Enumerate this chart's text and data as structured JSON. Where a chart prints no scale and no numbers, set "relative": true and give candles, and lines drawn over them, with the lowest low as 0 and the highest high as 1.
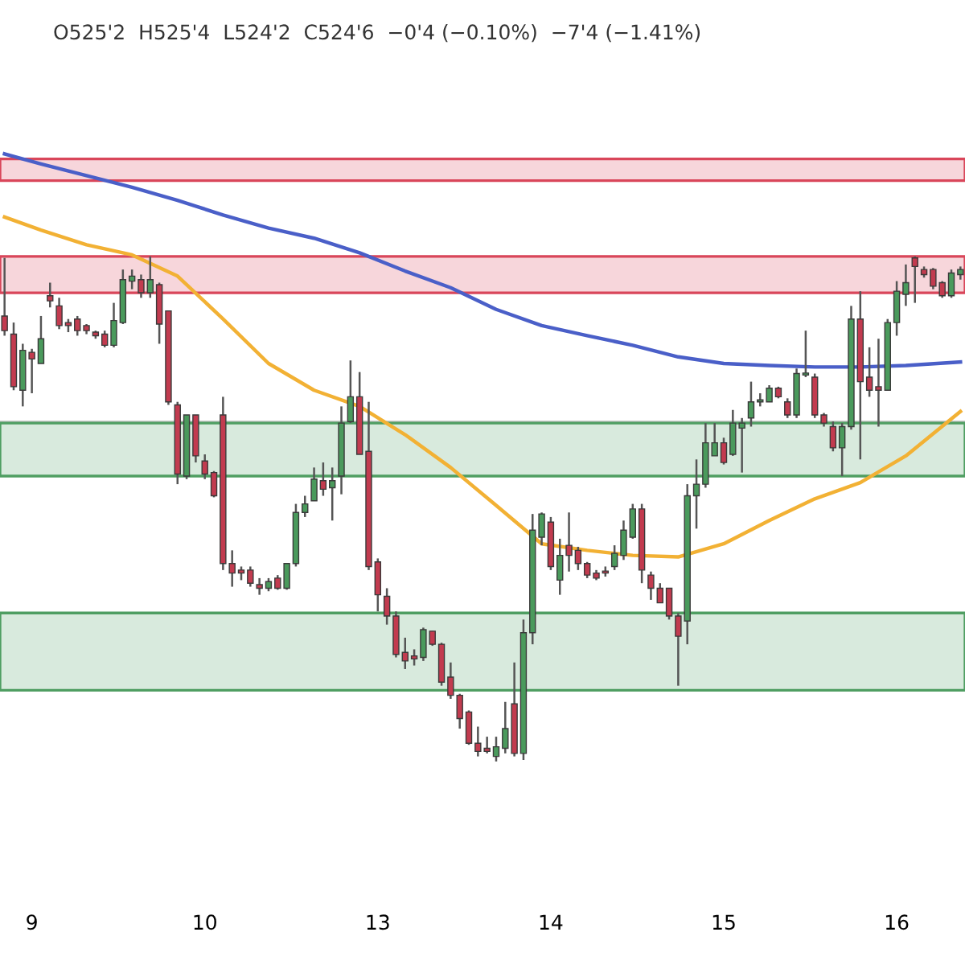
{
  "chart_data": {
    "type": "candlestick",
    "relative": true,
    "title": "O525'2  H525'4  L524'2  C524'6  −0'4 (−0.10%)  −7'4 (−1.41%)",
    "categories": [
      null,
      null,
      null,
      "9",
      null,
      null,
      null,
      null,
      null,
      null,
      null,
      null,
      null,
      null,
      null,
      null,
      null,
      null,
      null,
      null,
      null,
      null,
      "10",
      null,
      null,
      null,
      null,
      null,
      null,
      null,
      null,
      null,
      null,
      null,
      null,
      null,
      null,
      null,
      null,
      null,
      null,
      "13",
      null,
      null,
      null,
      null,
      null,
      null,
      null,
      null,
      null,
      null,
      null,
      null,
      null,
      null,
      null,
      null,
      null,
      null,
      "14",
      null,
      null,
      null,
      null,
      null,
      null,
      null,
      null,
      null,
      null,
      null,
      null,
      null,
      null,
      null,
      null,
      null,
      null,
      "15",
      null,
      null,
      null,
      null,
      null,
      null,
      null,
      null,
      null,
      null,
      null,
      null,
      null,
      null,
      null,
      null,
      null,
      null,
      "16",
      null,
      null,
      null,
      null,
      null,
      null,
      null
    ],
    "ohlc": [
      [
        0.882,
        0.997,
        0.843,
        0.853
      ],
      [
        0.846,
        0.869,
        0.735,
        0.742
      ],
      [
        0.735,
        0.827,
        0.703,
        0.814
      ],
      [
        0.81,
        0.817,
        0.729,
        0.797
      ],
      [
        0.788,
        0.882,
        0.788,
        0.837
      ],
      [
        0.922,
        0.948,
        0.899,
        0.912
      ],
      [
        0.902,
        0.918,
        0.856,
        0.863
      ],
      [
        0.869,
        0.876,
        0.85,
        0.863
      ],
      [
        0.876,
        0.882,
        0.843,
        0.853
      ],
      [
        0.863,
        0.866,
        0.846,
        0.853
      ],
      [
        0.85,
        0.853,
        0.837,
        0.843
      ],
      [
        0.846,
        0.853,
        0.82,
        0.824
      ],
      [
        0.824,
        0.908,
        0.82,
        0.873
      ],
      [
        0.869,
        0.974,
        0.866,
        0.954
      ],
      [
        0.951,
        0.974,
        0.935,
        0.961
      ],
      [
        0.954,
        0.964,
        0.918,
        0.928
      ],
      [
        0.928,
        1.0,
        0.918,
        0.954
      ],
      [
        0.944,
        0.948,
        0.827,
        0.866
      ],
      [
        0.892,
        0.892,
        0.706,
        0.712
      ],
      [
        0.706,
        0.712,
        0.549,
        0.569
      ],
      [
        0.565,
        0.686,
        0.559,
        0.686
      ],
      [
        0.686,
        0.686,
        0.592,
        0.605
      ],
      [
        0.595,
        0.608,
        0.559,
        0.569
      ],
      [
        0.572,
        0.575,
        0.523,
        0.526
      ],
      [
        0.686,
        0.722,
        0.379,
        0.392
      ],
      [
        0.392,
        0.418,
        0.346,
        0.373
      ],
      [
        0.379,
        0.386,
        0.359,
        0.373
      ],
      [
        0.379,
        0.386,
        0.346,
        0.353
      ],
      [
        0.35,
        0.363,
        0.33,
        0.343
      ],
      [
        0.343,
        0.363,
        0.337,
        0.356
      ],
      [
        0.363,
        0.369,
        0.34,
        0.343
      ],
      [
        0.343,
        0.392,
        0.34,
        0.392
      ],
      [
        0.392,
        0.51,
        0.386,
        0.493
      ],
      [
        0.493,
        0.526,
        0.484,
        0.51
      ],
      [
        0.516,
        0.582,
        0.516,
        0.559
      ],
      [
        0.556,
        0.592,
        0.526,
        0.539
      ],
      [
        0.542,
        0.582,
        0.477,
        0.556
      ],
      [
        0.565,
        0.703,
        0.529,
        0.67
      ],
      [
        0.673,
        0.794,
        0.67,
        0.722
      ],
      [
        0.722,
        0.771,
        0.608,
        0.608
      ],
      [
        0.614,
        0.712,
        0.379,
        0.386
      ],
      [
        0.395,
        0.402,
        0.297,
        0.33
      ],
      [
        0.327,
        0.343,
        0.271,
        0.288
      ],
      [
        0.288,
        0.297,
        0.206,
        0.212
      ],
      [
        0.216,
        0.245,
        0.183,
        0.199
      ],
      [
        0.209,
        0.222,
        0.19,
        0.203
      ],
      [
        0.206,
        0.265,
        0.199,
        0.261
      ],
      [
        0.258,
        0.258,
        0.229,
        0.232
      ],
      [
        0.232,
        0.235,
        0.15,
        0.157
      ],
      [
        0.167,
        0.196,
        0.124,
        0.131
      ],
      [
        0.131,
        0.134,
        0.065,
        0.085
      ],
      [
        0.098,
        0.101,
        0.033,
        0.036
      ],
      [
        0.036,
        0.069,
        0.01,
        0.02
      ],
      [
        0.026,
        0.049,
        0.016,
        0.02
      ],
      [
        0.01,
        0.049,
        0.0,
        0.029
      ],
      [
        0.026,
        0.118,
        0.016,
        0.065
      ],
      [
        0.114,
        0.196,
        0.01,
        0.016
      ],
      [
        0.016,
        0.281,
        0.003,
        0.255
      ],
      [
        0.255,
        0.49,
        0.232,
        0.458
      ],
      [
        0.444,
        0.493,
        0.428,
        0.49
      ],
      [
        0.474,
        0.484,
        0.379,
        0.386
      ],
      [
        0.359,
        0.441,
        0.33,
        0.408
      ],
      [
        0.428,
        0.493,
        0.376,
        0.408
      ],
      [
        0.418,
        0.425,
        0.379,
        0.392
      ],
      [
        0.392,
        0.395,
        0.363,
        0.369
      ],
      [
        0.373,
        0.379,
        0.359,
        0.363
      ],
      [
        0.376,
        0.386,
        0.366,
        0.373
      ],
      [
        0.386,
        0.428,
        0.379,
        0.412
      ],
      [
        0.408,
        0.477,
        0.399,
        0.458
      ],
      [
        0.444,
        0.51,
        0.441,
        0.5
      ],
      [
        0.5,
        0.51,
        0.353,
        0.379
      ],
      [
        0.369,
        0.376,
        0.32,
        0.343
      ],
      [
        0.343,
        0.353,
        0.314,
        0.314
      ],
      [
        0.343,
        0.343,
        0.281,
        0.288
      ],
      [
        0.288,
        0.294,
        0.15,
        0.248
      ],
      [
        0.278,
        0.549,
        0.232,
        0.526
      ],
      [
        0.526,
        0.598,
        0.461,
        0.549
      ],
      [
        0.549,
        0.67,
        0.542,
        0.631
      ],
      [
        0.605,
        0.67,
        0.605,
        0.631
      ],
      [
        0.631,
        0.641,
        0.588,
        0.592
      ],
      [
        0.608,
        0.696,
        0.605,
        0.67
      ],
      [
        0.66,
        0.68,
        0.572,
        0.67
      ],
      [
        0.68,
        0.752,
        0.663,
        0.712
      ],
      [
        0.712,
        0.729,
        0.703,
        0.716
      ],
      [
        0.712,
        0.745,
        0.712,
        0.739
      ],
      [
        0.739,
        0.742,
        0.719,
        0.722
      ],
      [
        0.712,
        0.719,
        0.68,
        0.686
      ],
      [
        0.686,
        0.778,
        0.68,
        0.768
      ],
      [
        0.765,
        0.853,
        0.761,
        0.768
      ],
      [
        0.761,
        0.768,
        0.68,
        0.686
      ],
      [
        0.686,
        0.69,
        0.663,
        0.67
      ],
      [
        0.663,
        0.673,
        0.614,
        0.621
      ],
      [
        0.621,
        0.67,
        0.565,
        0.663
      ],
      [
        0.663,
        0.902,
        0.657,
        0.876
      ],
      [
        0.876,
        0.931,
        0.598,
        0.752
      ],
      [
        0.761,
        0.82,
        0.722,
        0.735
      ],
      [
        0.742,
        0.837,
        0.663,
        0.735
      ],
      [
        0.735,
        0.876,
        0.735,
        0.869
      ],
      [
        0.869,
        0.951,
        0.843,
        0.931
      ],
      [
        0.925,
        0.984,
        0.902,
        0.948
      ],
      [
        0.997,
        1.0,
        0.908,
        0.98
      ],
      [
        0.974,
        0.98,
        0.958,
        0.964
      ],
      [
        0.974,
        0.977,
        0.935,
        0.941
      ],
      [
        0.948,
        0.951,
        0.918,
        0.922
      ],
      [
        0.922,
        0.974,
        0.918,
        0.967
      ],
      [
        0.964,
        0.98,
        0.954,
        0.974
      ]
    ],
    "series": [
      {
        "type": "line",
        "color": "#f2b134",
        "values": [
          1.078,
          null,
          null,
          null,
          1.052,
          null,
          null,
          null,
          null,
          1.023,
          null,
          null,
          null,
          null,
          1.003,
          null,
          null,
          null,
          null,
          0.961,
          null,
          null,
          null,
          null,
          0.876,
          null,
          null,
          null,
          null,
          0.788,
          null,
          null,
          null,
          null,
          0.735,
          null,
          null,
          null,
          null,
          0.703,
          null,
          null,
          null,
          null,
          0.647,
          null,
          null,
          null,
          null,
          0.582,
          null,
          null,
          null,
          null,
          0.507,
          null,
          null,
          null,
          null,
          0.431,
          null,
          null,
          null,
          null,
          0.418,
          null,
          null,
          null,
          null,
          0.408,
          null,
          null,
          null,
          null,
          0.405,
          null,
          null,
          null,
          null,
          0.431,
          null,
          null,
          null,
          null,
          0.477,
          null,
          null,
          null,
          null,
          0.52,
          null,
          null,
          null,
          null,
          0.552,
          null,
          null,
          null,
          null,
          0.605,
          null,
          null,
          null,
          null,
          null,
          0.693
        ]
      },
      {
        "type": "line",
        "color": "#4a5fc8",
        "values": [
          1.203,
          null,
          null,
          null,
          1.183,
          null,
          null,
          null,
          null,
          1.16,
          null,
          null,
          null,
          null,
          1.137,
          null,
          null,
          null,
          null,
          1.111,
          null,
          null,
          null,
          null,
          1.082,
          null,
          null,
          null,
          null,
          1.056,
          null,
          null,
          null,
          null,
          1.036,
          null,
          null,
          null,
          null,
          1.007,
          null,
          null,
          null,
          null,
          0.971,
          null,
          null,
          null,
          null,
          0.938,
          null,
          null,
          null,
          null,
          0.895,
          null,
          null,
          null,
          null,
          0.863,
          null,
          null,
          null,
          null,
          0.843,
          null,
          null,
          null,
          null,
          0.824,
          null,
          null,
          null,
          null,
          0.801,
          null,
          null,
          null,
          null,
          0.788,
          null,
          null,
          null,
          null,
          0.784,
          null,
          null,
          null,
          null,
          0.781,
          null,
          null,
          null,
          null,
          0.781,
          null,
          null,
          null,
          null,
          0.784,
          null,
          null,
          null,
          null,
          null,
          0.791
        ]
      }
    ],
    "bands": [
      {
        "axis": "y",
        "from": 1.15,
        "to": 1.193,
        "color": "#d9465a"
      },
      {
        "axis": "y",
        "from": 0.928,
        "to": 1.0,
        "color": "#d9465a"
      },
      {
        "axis": "y",
        "from": 0.565,
        "to": 0.67,
        "color": "#4f9e62"
      },
      {
        "axis": "y",
        "from": 0.141,
        "to": 0.294,
        "color": "#4f9e62"
      }
    ],
    "ref_lines": [
      {
        "axis": "y",
        "value": 0.673,
        "color": "#c8c8c8"
      }
    ],
    "grid": false,
    "legend": false
  }
}
